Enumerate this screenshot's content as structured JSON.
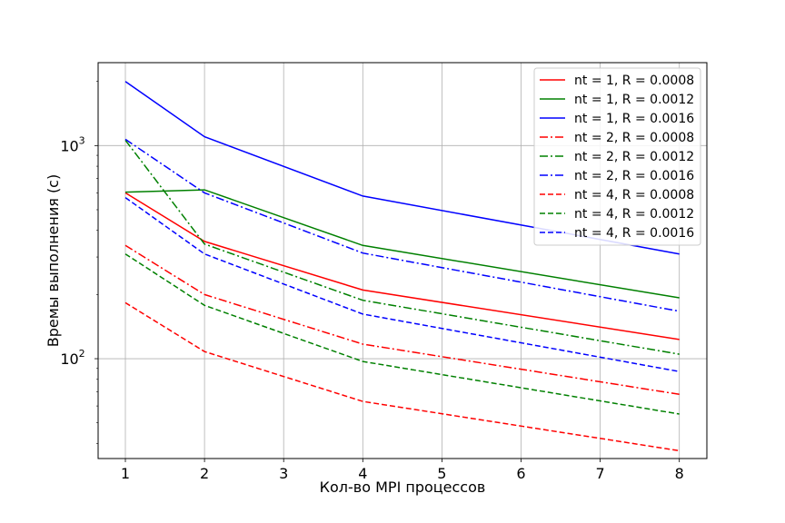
{
  "chart_data": {
    "type": "line",
    "xlabel": "Кол-во MPI процессов",
    "ylabel": "Времы выполнения (с)",
    "x_ticks": [
      "1",
      "2",
      "3",
      "4",
      "5",
      "6",
      "7",
      "8"
    ],
    "x_positions": [
      1,
      2,
      3,
      4,
      5,
      6,
      7,
      8
    ],
    "y_scale": "log",
    "y_ticks": [
      {
        "base": "10",
        "exp": "2",
        "value": 100
      },
      {
        "base": "10",
        "exp": "3",
        "value": 1000
      }
    ],
    "ylim": [
      34,
      2450
    ],
    "grid": true,
    "legend_position": "top-right",
    "x": [
      1,
      2,
      4,
      8
    ],
    "series": [
      {
        "name": "nt = 1, R = 0.0008",
        "color": "#ff0000",
        "style": "solid",
        "values": [
          600,
          355,
          210,
          123
        ]
      },
      {
        "name": "nt = 1, R = 0.0012",
        "color": "#008000",
        "style": "solid",
        "values": [
          605,
          620,
          340,
          193
        ]
      },
      {
        "name": "nt = 1, R = 0.0016",
        "color": "#0000ff",
        "style": "solid",
        "values": [
          2000,
          1100,
          580,
          310
        ]
      },
      {
        "name": "nt = 2, R = 0.0008",
        "color": "#ff0000",
        "style": "dashdot",
        "values": [
          340,
          200,
          117,
          68
        ]
      },
      {
        "name": "nt = 2, R = 0.0012",
        "color": "#008000",
        "style": "dashdot",
        "values": [
          1060,
          345,
          188,
          105
        ]
      },
      {
        "name": "nt = 2, R = 0.0016",
        "color": "#0000ff",
        "style": "dashdot",
        "values": [
          1070,
          600,
          313,
          167
        ]
      },
      {
        "name": "nt = 4, R = 0.0008",
        "color": "#ff0000",
        "style": "dashed",
        "values": [
          183,
          108,
          63,
          37
        ]
      },
      {
        "name": "nt = 4, R = 0.0012",
        "color": "#008000",
        "style": "dashed",
        "values": [
          310,
          178,
          97,
          55
        ]
      },
      {
        "name": "nt = 4, R = 0.0016",
        "color": "#0000ff",
        "style": "dashed",
        "values": [
          570,
          310,
          162,
          87
        ]
      }
    ]
  }
}
